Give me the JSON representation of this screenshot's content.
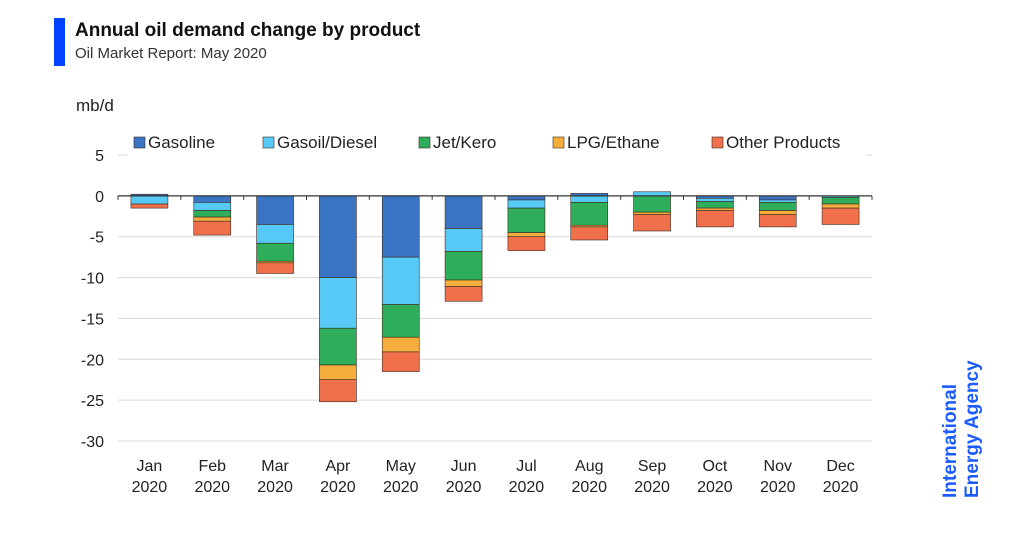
{
  "header": {
    "title": "Annual oil demand change by product",
    "subtitle": "Oil Market Report: May 2020",
    "accent_color": "#0044ff"
  },
  "brand": {
    "line1": "International",
    "line2": "Energy Agency",
    "color": "#1a5cff"
  },
  "chart_data": {
    "type": "bar",
    "stacked": true,
    "ylabel": "mb/d",
    "ylim": [
      -30,
      5
    ],
    "yticks": [
      5,
      0,
      -5,
      -10,
      -15,
      -20,
      -25,
      -30
    ],
    "grid": true,
    "legend_position": "top",
    "categories": [
      [
        "Jan",
        "2020"
      ],
      [
        "Feb",
        "2020"
      ],
      [
        "Mar",
        "2020"
      ],
      [
        "Apr",
        "2020"
      ],
      [
        "May",
        "2020"
      ],
      [
        "Jun",
        "2020"
      ],
      [
        "Jul",
        "2020"
      ],
      [
        "Aug",
        "2020"
      ],
      [
        "Sep",
        "2020"
      ],
      [
        "Oct",
        "2020"
      ],
      [
        "Nov",
        "2020"
      ],
      [
        "Dec",
        "2020"
      ]
    ],
    "series": [
      {
        "name": "Gasoline",
        "color": "#3a74c4",
        "values": [
          0.2,
          -0.8,
          -3.5,
          -10.0,
          -7.5,
          -4.0,
          -0.5,
          0.3,
          0.0,
          -0.3,
          -0.5,
          0.0
        ]
      },
      {
        "name": "Gasoil/Diesel",
        "color": "#56c9f7",
        "values": [
          -1.0,
          -1.0,
          -2.3,
          -6.2,
          -5.8,
          -2.8,
          -1.0,
          -0.8,
          0.5,
          -0.4,
          -0.3,
          -0.2
        ]
      },
      {
        "name": "Jet/Kero",
        "color": "#2eae5a",
        "values": [
          0.0,
          -0.8,
          -2.2,
          -4.5,
          -4.0,
          -3.5,
          -3.0,
          -2.8,
          -2.0,
          -0.8,
          -1.0,
          -0.8
        ]
      },
      {
        "name": "LPG/Ethane",
        "color": "#f5ae3d",
        "values": [
          0.0,
          -0.5,
          -0.2,
          -1.8,
          -1.8,
          -0.8,
          -0.5,
          -0.2,
          -0.3,
          -0.3,
          -0.5,
          -0.5
        ]
      },
      {
        "name": "Other Products",
        "color": "#f0704c",
        "values": [
          -0.5,
          -1.7,
          -1.3,
          -2.7,
          -2.4,
          -1.8,
          -1.7,
          -1.6,
          -2.0,
          -2.0,
          -1.5,
          -2.0
        ]
      }
    ]
  }
}
